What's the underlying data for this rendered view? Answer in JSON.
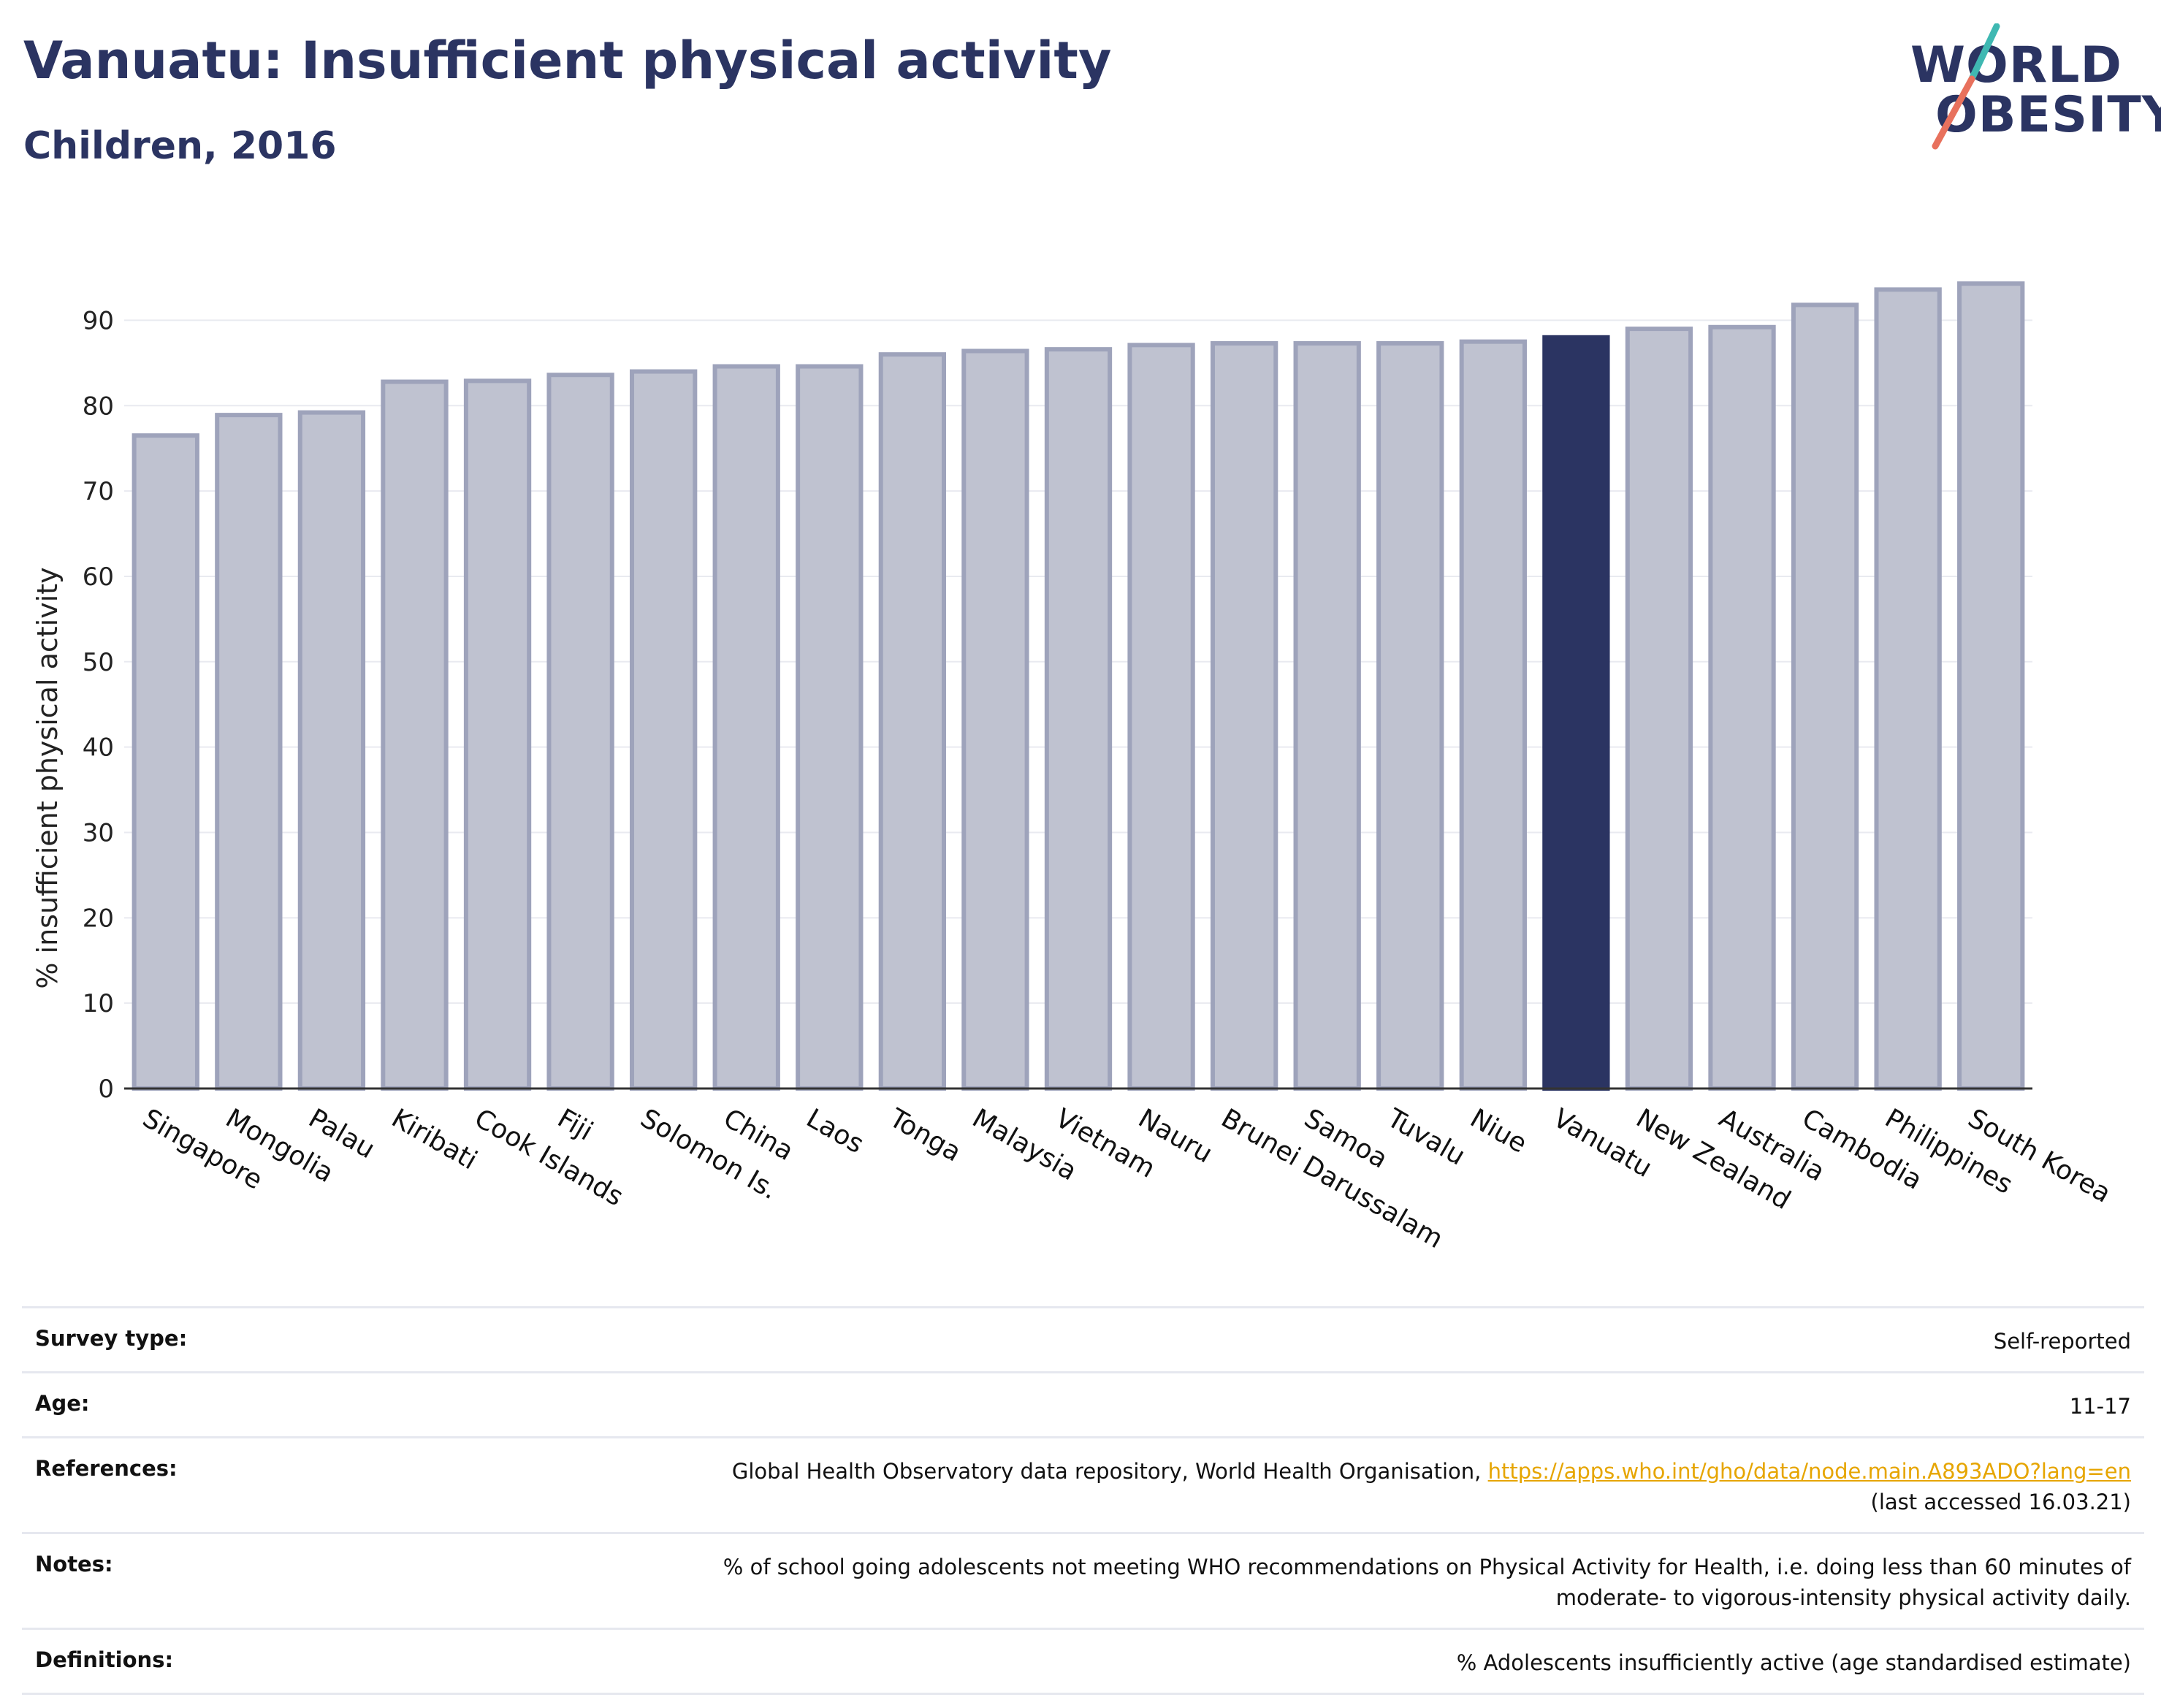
{
  "header": {
    "title": "Vanuatu: Insufficient physical activity",
    "subtitle": "Children, 2016"
  },
  "logo": {
    "line1": "WORLD",
    "line2": "OBESITY"
  },
  "chart_data": {
    "type": "bar",
    "ylabel": "% insufficient physical activity",
    "xlabel": "",
    "ylim": [
      0,
      95
    ],
    "yticks": [
      0,
      10,
      20,
      30,
      40,
      50,
      60,
      70,
      80,
      90
    ],
    "grid": true,
    "categories": [
      "Singapore",
      "Mongolia",
      "Palau",
      "Kiribati",
      "Cook Islands",
      "Fiji",
      "Solomon Is.",
      "China",
      "Laos",
      "Tonga",
      "Malaysia",
      "Vietnam",
      "Nauru",
      "Brunei Darussalam",
      "Samoa",
      "Tuvalu",
      "Niue",
      "Vanuatu",
      "New Zealand",
      "Australia",
      "Cambodia",
      "Philippines",
      "South Korea"
    ],
    "values": [
      76.5,
      78.9,
      79.2,
      82.8,
      82.9,
      83.6,
      84.0,
      84.6,
      84.6,
      86.0,
      86.4,
      86.6,
      87.1,
      87.3,
      87.3,
      87.3,
      87.5,
      88.0,
      89.0,
      89.2,
      91.8,
      93.6,
      94.3
    ],
    "highlight": "Vanuatu",
    "colors": {
      "bar": "#bfc2d0",
      "bar_edge": "#9ea3bb",
      "highlight": "#2b3462",
      "grid": "#e9eaf0",
      "axis": "#333333"
    }
  },
  "info": {
    "survey_type": {
      "label": "Survey type:",
      "value": "Self-reported"
    },
    "age": {
      "label": "Age:",
      "value": "11-17"
    },
    "references": {
      "label": "References:",
      "text": "Global Health Observatory data repository, World Health Organisation, ",
      "link": "https://apps.who.int/gho/data/node.main.A893ADO?lang=en",
      "accessed": "(last accessed 16.03.21)"
    },
    "notes": {
      "label": "Notes:",
      "line1": "% of school going adolescents not meeting WHO recommendations on Physical Activity for Health, i.e. doing less than 60 minutes of",
      "line2": "moderate- to vigorous-intensity physical activity daily."
    },
    "definitions": {
      "label": "Definitions:",
      "value": "% Adolescents insufficiently active (age standardised estimate)"
    }
  }
}
